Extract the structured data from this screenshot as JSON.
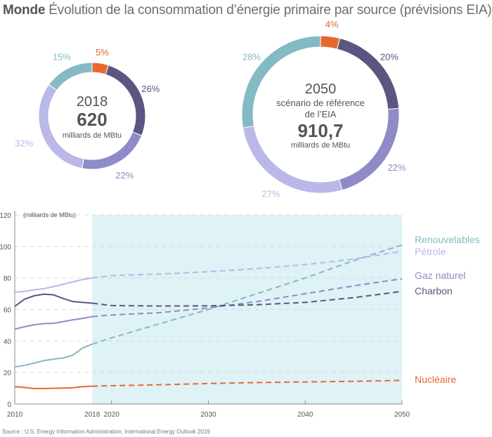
{
  "title": {
    "bold": "Monde",
    "text": " Évolution de la consommation d’énergie primaire par source (prévisions EIA)"
  },
  "source": "Source : U.S. Energy Information Administration, International Energy Outlook 2019",
  "colors": {
    "Nucléaire": "#e5692f",
    "Charbon": "#5a5680",
    "Gaz naturel": "#8f8bc8",
    "Pétrole": "#b9b8e8",
    "Renouvelables": "#84bac3",
    "forecast_bg": "#dff2f6"
  },
  "chart_data": [
    {
      "type": "pie",
      "title": "2018",
      "total_value": "620",
      "total_unit": "milliards de MBtu",
      "subtitle": "",
      "labels": [
        "Nucléaire",
        "Charbon",
        "Gaz naturel",
        "Pétrole",
        "Renouvelables"
      ],
      "values": [
        5,
        26,
        22,
        32,
        15
      ],
      "value_labels": [
        "5%",
        "26%",
        "22%",
        "32%",
        "15%"
      ]
    },
    {
      "type": "pie",
      "title": "2050",
      "subtitle_lines": [
        "scénario de référence",
        "de l’EIA"
      ],
      "total_value": "910,7",
      "total_unit": "milliards de MBtu",
      "labels": [
        "Nucléaire",
        "Charbon",
        "Gaz naturel",
        "Pétrole",
        "Renouvelables"
      ],
      "values": [
        4,
        20,
        22,
        27,
        28
      ],
      "value_labels": [
        "4%",
        "20%",
        "22%",
        "27%",
        "28%"
      ]
    },
    {
      "type": "line",
      "title": "",
      "ylabel": "(milliards de MBtu)",
      "xlabel": "",
      "ylim": [
        0,
        120
      ],
      "xlim": [
        2010,
        2050
      ],
      "yticks": [
        0,
        20,
        40,
        60,
        80,
        100,
        120
      ],
      "xticks": [
        2010,
        2018,
        2020,
        2030,
        2040,
        2050
      ],
      "grid": "horizontal dashed",
      "forecast_from": 2018,
      "legend": "right (labels at line ends)",
      "series": [
        {
          "name": "Renouvelables",
          "historical": {
            "x": [
              2010,
              2011,
              2012,
              2013,
              2014,
              2015,
              2016,
              2017,
              2018
            ],
            "y": [
              23.5,
              24.5,
              26,
              27.5,
              28.5,
              29.2,
              31,
              35.5,
              38
            ]
          },
          "forecast": {
            "x": [
              2018,
              2020,
              2025,
              2030,
              2035,
              2040,
              2045,
              2050
            ],
            "y": [
              38,
              42,
              51,
              60,
              70,
              80,
              91,
              101
            ]
          }
        },
        {
          "name": "Pétrole",
          "historical": {
            "x": [
              2010,
              2011,
              2012,
              2013,
              2014,
              2015,
              2016,
              2017,
              2018
            ],
            "y": [
              71,
              71.5,
              72.5,
              73.2,
              74.5,
              76,
              77.5,
              79,
              80
            ]
          },
          "forecast": {
            "x": [
              2018,
              2020,
              2025,
              2030,
              2035,
              2040,
              2045,
              2050
            ],
            "y": [
              80,
              81.5,
              82.5,
              84,
              86,
              88.5,
              92,
              97
            ]
          }
        },
        {
          "name": "Gaz naturel",
          "historical": {
            "x": [
              2010,
              2011,
              2012,
              2013,
              2014,
              2015,
              2016,
              2017,
              2018
            ],
            "y": [
              47.5,
              49,
              50.3,
              51,
              51.2,
              52.3,
              53.4,
              54.3,
              55.5
            ]
          },
          "forecast": {
            "x": [
              2018,
              2020,
              2025,
              2030,
              2035,
              2040,
              2045,
              2050
            ],
            "y": [
              55.5,
              56.5,
              58,
              61,
              65,
              70,
              75,
              79.5
            ]
          }
        },
        {
          "name": "Charbon",
          "historical": {
            "x": [
              2010,
              2011,
              2012,
              2013,
              2014,
              2015,
              2016,
              2017,
              2018
            ],
            "y": [
              62,
              66.5,
              68.7,
              69.7,
              69.3,
              67,
              65,
              64.5,
              64
            ]
          },
          "forecast": {
            "x": [
              2018,
              2020,
              2025,
              2030,
              2035,
              2040,
              2045,
              2050
            ],
            "y": [
              64,
              62.5,
              62.2,
              62.3,
              63,
              64.5,
              67.5,
              71.5
            ]
          }
        },
        {
          "name": "Nucléaire",
          "historical": {
            "x": [
              2010,
              2011,
              2012,
              2013,
              2014,
              2015,
              2016,
              2017,
              2018
            ],
            "y": [
              11,
              10.5,
              9.8,
              9.8,
              10,
              10.1,
              10.3,
              11,
              11.3
            ]
          },
          "forecast": {
            "x": [
              2018,
              2020,
              2025,
              2030,
              2035,
              2040,
              2045,
              2050
            ],
            "y": [
              11.3,
              11.6,
              12.2,
              13,
              13.6,
              14,
              14.4,
              15
            ]
          }
        }
      ]
    }
  ]
}
